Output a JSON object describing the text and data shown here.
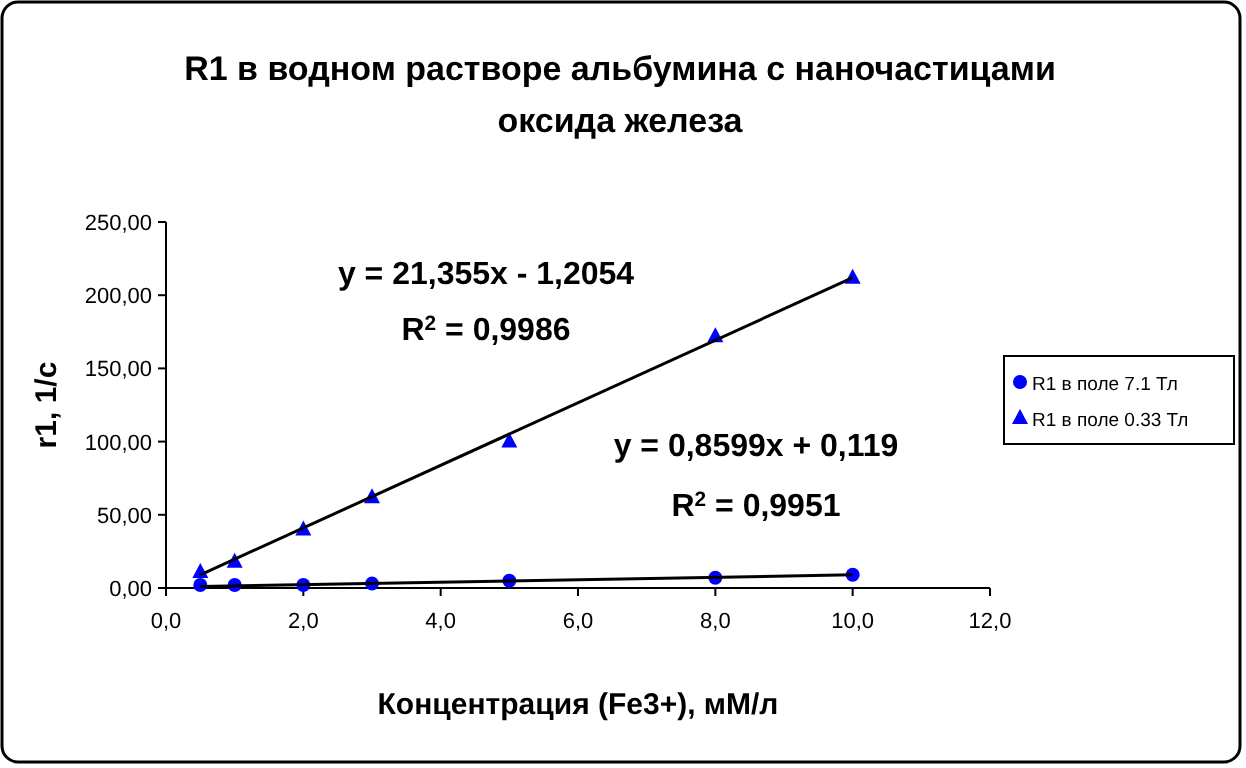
{
  "chart_data": {
    "type": "scatter",
    "title": "R1 в водном растворе альбумина с наночастицами\nоксида железа",
    "xlabel": "Концентрация (Fe3+), мМ/л",
    "ylabel": "r1,  1/с",
    "xlim": [
      0,
      12
    ],
    "xticks": [
      {
        "value": 0,
        "label": "0,0"
      },
      {
        "value": 2,
        "label": "2,0"
      },
      {
        "value": 4,
        "label": "4,0"
      },
      {
        "value": 6,
        "label": "6,0"
      },
      {
        "value": 8,
        "label": "8,0"
      },
      {
        "value": 10,
        "label": "10,0"
      },
      {
        "value": 12,
        "label": "12,0"
      }
    ],
    "ylim": [
      0,
      250
    ],
    "yticks": [
      {
        "value": 0,
        "label": "0,00"
      },
      {
        "value": 50,
        "label": "50,00"
      },
      {
        "value": 100,
        "label": "100,00"
      },
      {
        "value": 150,
        "label": "150,00"
      },
      {
        "value": 200,
        "label": "200,00"
      },
      {
        "value": 250,
        "label": "250,00"
      }
    ],
    "grid": false,
    "legend": "right",
    "series": [
      {
        "name": "R1 в поле 7.1 Тл",
        "marker": "circle",
        "color": "#0000ff",
        "x": [
          0.5,
          1,
          2,
          3,
          5,
          8,
          10
        ],
        "values": [
          2,
          2,
          2,
          3,
          5,
          7,
          9
        ]
      },
      {
        "name": "R1 в поле 0.33 Тл",
        "marker": "triangle",
        "color": "#0000ff",
        "x": [
          0.5,
          1,
          2,
          3,
          5,
          8,
          10
        ],
        "values": [
          11,
          18,
          40,
          62,
          100,
          172,
          212
        ]
      },
      {
        "type": "line",
        "marker": "none",
        "color": "#000000",
        "x": [
          0.5,
          10
        ],
        "values": [
          1,
          9
        ]
      },
      {
        "type": "line",
        "marker": "none",
        "color": "#000000",
        "x": [
          0.5,
          10
        ],
        "values": [
          9,
          212
        ]
      }
    ],
    "annotations": [
      "y = 21,355x - 1,2054",
      "R$^{2}$ = 0,9986",
      "y = 0,8599x + 0,119",
      "R$^{2}$ = 0,9951"
    ]
  }
}
